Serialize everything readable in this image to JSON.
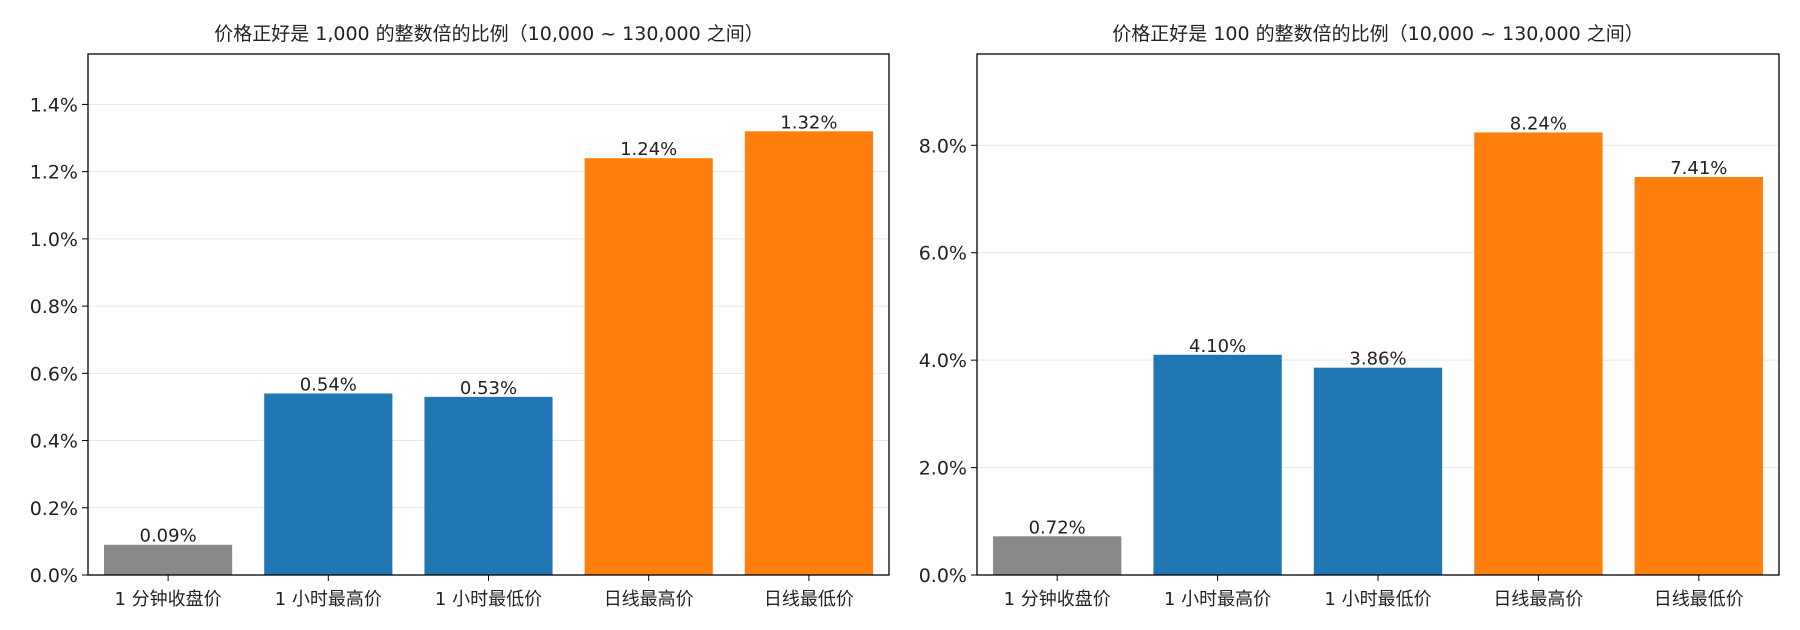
{
  "chart_data": [
    {
      "type": "bar",
      "title": "价格正好是 1,000 的整数倍的比例（10,000 ~ 130,000 之间）",
      "categories": [
        "1 分钟收盘价",
        "1 小时最高价",
        "1 小时最低价",
        "日线最高价",
        "日线最低价"
      ],
      "values": [
        0.09,
        0.54,
        0.53,
        1.24,
        1.32
      ],
      "value_labels": [
        "0.09%",
        "0.54%",
        "0.53%",
        "1.24%",
        "1.32%"
      ],
      "colors": [
        "#888888",
        "#1f77b4",
        "#1f77b4",
        "#ff7f0e",
        "#ff7f0e"
      ],
      "xlabel": "",
      "ylabel": "",
      "ylim": [
        0,
        1.55
      ],
      "yticks": [
        0,
        0.2,
        0.4,
        0.6,
        0.8,
        1.0,
        1.2,
        1.4
      ],
      "ytick_labels": [
        "0.0%",
        "0.2%",
        "0.4%",
        "0.6%",
        "0.8%",
        "1.0%",
        "1.2%",
        "1.4%"
      ],
      "grid": "horizontal",
      "legend": "none"
    },
    {
      "type": "bar",
      "title": "价格正好是 100 的整数倍的比例（10,000 ~ 130,000 之间）",
      "categories": [
        "1 分钟收盘价",
        "1 小时最高价",
        "1 小时最低价",
        "日线最高价",
        "日线最低价"
      ],
      "values": [
        0.72,
        4.1,
        3.86,
        8.24,
        7.41
      ],
      "value_labels": [
        "0.72%",
        "4.10%",
        "3.86%",
        "8.24%",
        "7.41%"
      ],
      "colors": [
        "#888888",
        "#1f77b4",
        "#1f77b4",
        "#ff7f0e",
        "#ff7f0e"
      ],
      "xlabel": "",
      "ylabel": "",
      "ylim": [
        0,
        9.7
      ],
      "yticks": [
        0,
        2,
        4,
        6,
        8
      ],
      "ytick_labels": [
        "0.0%",
        "2.0%",
        "4.0%",
        "6.0%",
        "8.0%"
      ],
      "grid": "horizontal",
      "legend": "none"
    }
  ]
}
